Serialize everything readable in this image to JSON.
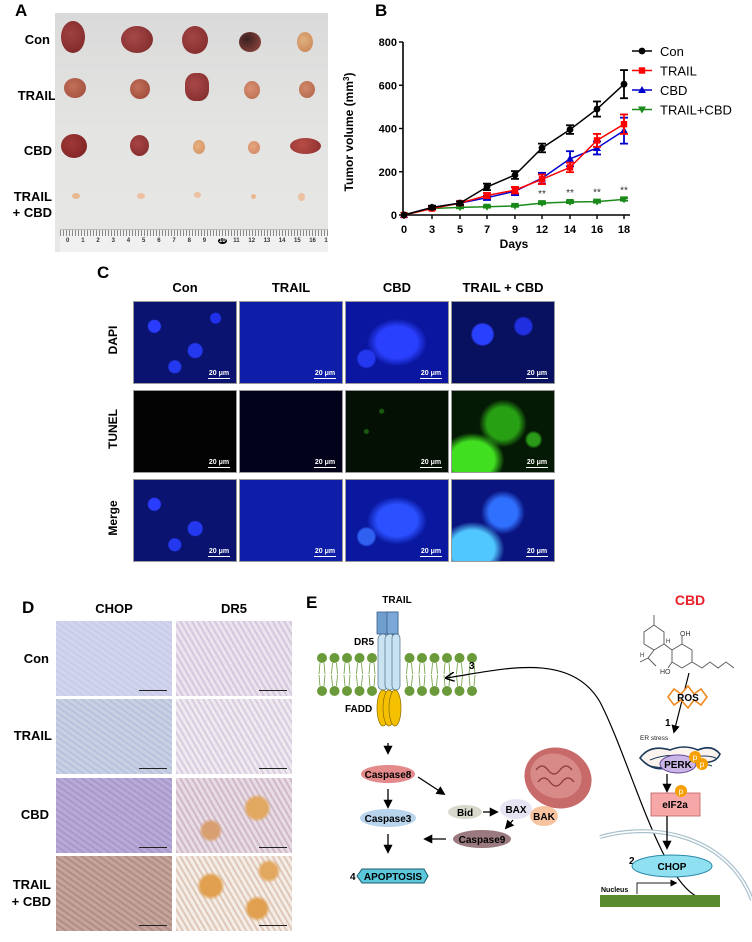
{
  "panels": {
    "A": {
      "label": "A",
      "rows": [
        "Con",
        "TRAIL",
        "CBD",
        "TRAIL\n+ CBD"
      ],
      "row_line1": [
        "Con",
        "TRAIL",
        "CBD",
        "TRAIL"
      ],
      "row_line2": [
        "",
        "",
        "",
        "+ CBD"
      ],
      "ruler_numbers": [
        "0",
        "1",
        "2",
        "3",
        "4",
        "5",
        "6",
        "7",
        "8",
        "9",
        "10",
        "11",
        "12",
        "13",
        "14",
        "15",
        "16",
        "1"
      ]
    },
    "B": {
      "label": "B"
    },
    "C": {
      "label": "C",
      "columns": [
        "Con",
        "TRAIL",
        "CBD",
        "TRAIL + CBD"
      ],
      "rows": [
        "DAPI",
        "TUNEL",
        "Merge"
      ],
      "scale_bar": "20 μm"
    },
    "D": {
      "label": "D",
      "columns": [
        "CHOP",
        "DR5"
      ],
      "rows_line1": [
        "Con",
        "TRAIL",
        "CBD",
        "TRAIL"
      ],
      "rows_line2": [
        "",
        "",
        "",
        "+ CBD"
      ]
    },
    "E": {
      "label": "E",
      "labels": {
        "trail": "TRAIL",
        "dr5": "DR5",
        "fadd": "FADD",
        "caspase8": "Caspase8",
        "caspase3": "Caspase3",
        "caspase9": "Caspase9",
        "bid": "Bid",
        "bax": "BAX",
        "bak": "BAK",
        "apoptosis": "APOPTOSIS",
        "cbd": "CBD",
        "ros": "ROS",
        "er_stress": "ER stress",
        "perk": "PERK",
        "eif2a": "eIF2a",
        "chop": "CHOP",
        "nucleus": "Nucleus",
        "p": "p",
        "oh": "OH",
        "ho": "HO",
        "h": "H"
      },
      "steps": [
        "1",
        "2",
        "3",
        "4"
      ],
      "colors": {
        "cbd": "#e8202a",
        "membrane": "#6a9a3a",
        "fadd": "#f5c000",
        "trail": "#6f9ecf",
        "caspase8": "#e48a8a",
        "caspase3": "#b8d4ec",
        "caspase9": "#9a7a7e",
        "apoptosis": "#5cc8dc",
        "chop": "#8fe0f0",
        "eif2a": "#f6a8a8",
        "perk": "#c9b6e6",
        "phospho": "#f5a000",
        "gene": "#5a8a2e"
      }
    }
  },
  "chart_data": {
    "type": "line",
    "title": "",
    "xlabel": "Days",
    "ylabel": "Tumor volume (mm³)",
    "ylabel_main": "Tumor volume (mm",
    "ylabel_sup": "3",
    "ylabel_close": ")",
    "x": [
      0,
      3,
      5,
      7,
      9,
      12,
      14,
      16,
      18
    ],
    "x_ticks": [
      "0",
      "3",
      "5",
      "7",
      "9",
      "12",
      "14",
      "16",
      "18"
    ],
    "y_ticks": [
      "0",
      "200",
      "400",
      "600",
      "800"
    ],
    "ylim": [
      0,
      800
    ],
    "grid": false,
    "legend_position": "upper right",
    "series": [
      {
        "name": "Con",
        "color": "#000000",
        "marker": "circle",
        "values": [
          0,
          35,
          55,
          130,
          185,
          310,
          395,
          490,
          605
        ],
        "errors": [
          0,
          8,
          8,
          15,
          18,
          20,
          20,
          35,
          65
        ]
      },
      {
        "name": "TRAIL",
        "color": "#ff0000",
        "marker": "square",
        "values": [
          0,
          30,
          55,
          90,
          115,
          165,
          220,
          345,
          420
        ],
        "errors": [
          0,
          6,
          8,
          12,
          15,
          22,
          22,
          30,
          45
        ]
      },
      {
        "name": "CBD",
        "color": "#0000cc",
        "marker": "triangle-up",
        "values": [
          0,
          35,
          55,
          80,
          110,
          170,
          260,
          310,
          390
        ],
        "errors": [
          0,
          6,
          8,
          10,
          18,
          25,
          35,
          30,
          60
        ]
      },
      {
        "name": "TRAIL+CBD",
        "color": "#1a8a1a",
        "marker": "triangle-down",
        "values": [
          0,
          30,
          35,
          38,
          42,
          55,
          60,
          62,
          72
        ],
        "errors": [
          0,
          4,
          4,
          4,
          4,
          5,
          5,
          5,
          6
        ]
      }
    ],
    "annotations": [
      {
        "x": 12,
        "text": "**"
      },
      {
        "x": 14,
        "text": "**"
      },
      {
        "x": 16,
        "text": "**"
      },
      {
        "x": 18,
        "text": "**"
      }
    ]
  }
}
